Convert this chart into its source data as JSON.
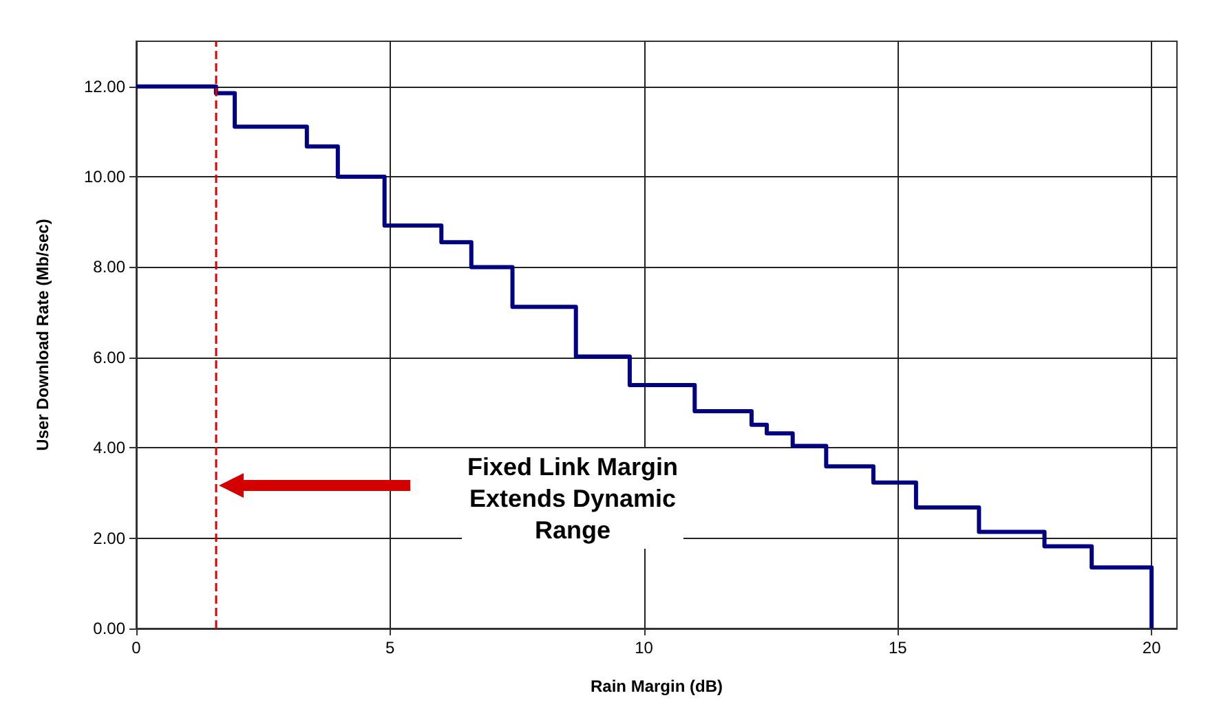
{
  "chart_data": {
    "type": "step",
    "xlabel": "Rain Margin (dB)",
    "ylabel": "User Download Rate (Mb/sec)",
    "x": [
      0,
      1.57,
      1.94,
      3.36,
      3.97,
      4.89,
      6.01,
      6.6,
      7.41,
      8.66,
      9.72,
      11.0,
      12.12,
      12.42,
      12.93,
      13.59,
      14.52,
      15.36,
      16.6,
      17.89,
      18.82,
      20
    ],
    "series": [
      {
        "color": "#000080",
        "values": [
          12,
          11.85,
          11.11,
          10.67,
          10.0,
          8.92,
          8.55,
          8.0,
          7.12,
          6.02,
          5.39,
          4.81,
          4.51,
          4.32,
          4.04,
          3.59,
          3.23,
          2.68,
          2.14,
          1.82,
          1.35,
          0
        ]
      }
    ],
    "xlim": [
      0,
      20.5
    ],
    "xticks": [
      0,
      5,
      10,
      15,
      20
    ],
    "ylim": [
      0,
      13
    ],
    "yticks": [
      {
        "value": 0,
        "label": "0.00"
      },
      {
        "value": 2,
        "label": "2.00"
      },
      {
        "value": 4,
        "label": "4.00"
      },
      {
        "value": 6,
        "label": "6.00"
      },
      {
        "value": 8,
        "label": "8.00"
      },
      {
        "value": 10,
        "label": "10.00"
      },
      {
        "value": 12,
        "label": "12.00"
      }
    ],
    "ref_lines": [
      {
        "axis": "x",
        "value": 1.57,
        "color": "#e00000",
        "line_style": "dashed"
      }
    ],
    "annotations": [
      "Fixed Link Margin\nExtends Dynamic\nRange"
    ],
    "grid": true,
    "marker": "none",
    "line_style": "solid"
  }
}
